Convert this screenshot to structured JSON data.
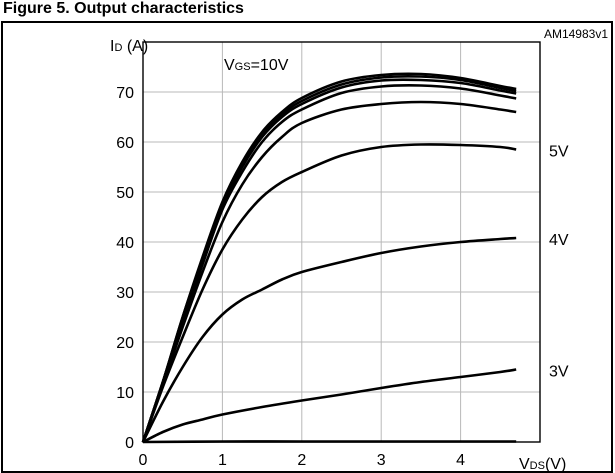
{
  "chart_data": {
    "type": "line",
    "title": "Figure 5. Output characteristics",
    "doc_code": "AM14983v1",
    "ylabel": "I_D (A)",
    "ylabel_main": "I",
    "ylabel_sub": "D",
    "ylabel_unit": " (A)",
    "xlabel": "V_DS(V)",
    "xlabel_main": "V",
    "xlabel_sub": "DS",
    "xlabel_unit": "(V)",
    "annotation": "V_GS=10V",
    "annotation_main": "V",
    "annotation_sub": "GS",
    "annotation_value": "=10V",
    "xlim": [
      0,
      5
    ],
    "ylim": [
      0,
      80
    ],
    "x_ticks": [
      0,
      1,
      2,
      3,
      4
    ],
    "y_ticks": [
      0,
      10,
      20,
      30,
      40,
      50,
      60,
      70
    ],
    "grid": true,
    "curve_labels": [
      {
        "text": "5V",
        "series_index": 5
      },
      {
        "text": "4V",
        "series_index": 6
      },
      {
        "text": "3V",
        "series_index": 7
      }
    ],
    "series": [
      {
        "values": [
          [
            0,
            0
          ],
          [
            0.25,
            12
          ],
          [
            0.5,
            25
          ],
          [
            0.75,
            37
          ],
          [
            1,
            48
          ],
          [
            1.25,
            56
          ],
          [
            1.5,
            62
          ],
          [
            1.75,
            66
          ],
          [
            2,
            68.8
          ],
          [
            2.5,
            72.1
          ],
          [
            3,
            73.4
          ],
          [
            3.5,
            73.6
          ],
          [
            4,
            72.8
          ],
          [
            4.5,
            71.2
          ],
          [
            4.7,
            70.6
          ]
        ]
      },
      {
        "values": [
          [
            0,
            0
          ],
          [
            0.25,
            12
          ],
          [
            0.5,
            25
          ],
          [
            0.75,
            36.5
          ],
          [
            1,
            47.5
          ],
          [
            1.25,
            55.5
          ],
          [
            1.5,
            61.5
          ],
          [
            1.75,
            65.5
          ],
          [
            2,
            68.2
          ],
          [
            2.5,
            71.5
          ],
          [
            3,
            72.9
          ],
          [
            3.5,
            73.1
          ],
          [
            4,
            72.4
          ],
          [
            4.5,
            70.8
          ],
          [
            4.7,
            70.2
          ]
        ]
      },
      {
        "values": [
          [
            0,
            0
          ],
          [
            0.25,
            12
          ],
          [
            0.5,
            24.5
          ],
          [
            0.75,
            36
          ],
          [
            1,
            47
          ],
          [
            1.25,
            55
          ],
          [
            1.5,
            61
          ],
          [
            1.75,
            65
          ],
          [
            2,
            67.6
          ],
          [
            2.5,
            70.9
          ],
          [
            3,
            72.3
          ],
          [
            3.5,
            72.4
          ],
          [
            4,
            71.8
          ],
          [
            4.5,
            70.3
          ],
          [
            4.7,
            69.7
          ]
        ]
      },
      {
        "values": [
          [
            0,
            0
          ],
          [
            0.25,
            12
          ],
          [
            0.5,
            24
          ],
          [
            0.75,
            35.5
          ],
          [
            1,
            46.5
          ],
          [
            1.25,
            54
          ],
          [
            1.5,
            60
          ],
          [
            1.75,
            64
          ],
          [
            2,
            66.5
          ],
          [
            2.5,
            69.8
          ],
          [
            3,
            71.1
          ],
          [
            3.5,
            71.3
          ],
          [
            4,
            70.7
          ],
          [
            4.5,
            69.3
          ],
          [
            4.7,
            68.7
          ]
        ]
      },
      {
        "values": [
          [
            0,
            0
          ],
          [
            0.25,
            11.5
          ],
          [
            0.5,
            23
          ],
          [
            0.75,
            34
          ],
          [
            1,
            44
          ],
          [
            1.25,
            51.5
          ],
          [
            1.5,
            57
          ],
          [
            1.75,
            61
          ],
          [
            2,
            63.8
          ],
          [
            2.5,
            66.5
          ],
          [
            3,
            67.6
          ],
          [
            3.5,
            68
          ],
          [
            4,
            67.6
          ],
          [
            4.5,
            66.5
          ],
          [
            4.7,
            66
          ]
        ]
      },
      {
        "values": [
          [
            0,
            0
          ],
          [
            0.25,
            11
          ],
          [
            0.5,
            21
          ],
          [
            0.75,
            30.5
          ],
          [
            1,
            38.5
          ],
          [
            1.25,
            44.5
          ],
          [
            1.5,
            49
          ],
          [
            1.75,
            52
          ],
          [
            2,
            54
          ],
          [
            2.5,
            57.3
          ],
          [
            3,
            59
          ],
          [
            3.5,
            59.5
          ],
          [
            4,
            59.4
          ],
          [
            4.5,
            59
          ],
          [
            4.7,
            58.5
          ]
        ]
      },
      {
        "values": [
          [
            0,
            0
          ],
          [
            0.25,
            8
          ],
          [
            0.5,
            15
          ],
          [
            0.75,
            21
          ],
          [
            1,
            25.5
          ],
          [
            1.25,
            28.5
          ],
          [
            1.5,
            30.5
          ],
          [
            1.75,
            32.5
          ],
          [
            2,
            34
          ],
          [
            2.5,
            36
          ],
          [
            3,
            37.8
          ],
          [
            3.5,
            39.1
          ],
          [
            4,
            40
          ],
          [
            4.5,
            40.6
          ],
          [
            4.7,
            40.8
          ]
        ]
      },
      {
        "values": [
          [
            0,
            0
          ],
          [
            0.25,
            2
          ],
          [
            0.5,
            3.5
          ],
          [
            0.75,
            4.5
          ],
          [
            1,
            5.5
          ],
          [
            1.5,
            7
          ],
          [
            2,
            8.3
          ],
          [
            2.5,
            9.5
          ],
          [
            3,
            10.8
          ],
          [
            3.5,
            12
          ],
          [
            4,
            13
          ],
          [
            4.5,
            14
          ],
          [
            4.7,
            14.5
          ]
        ]
      },
      {
        "values": [
          [
            0,
            0
          ],
          [
            1,
            0.1
          ],
          [
            2,
            0.1
          ],
          [
            3,
            0.1
          ],
          [
            4,
            0.1
          ],
          [
            4.7,
            0.1
          ]
        ]
      }
    ]
  }
}
